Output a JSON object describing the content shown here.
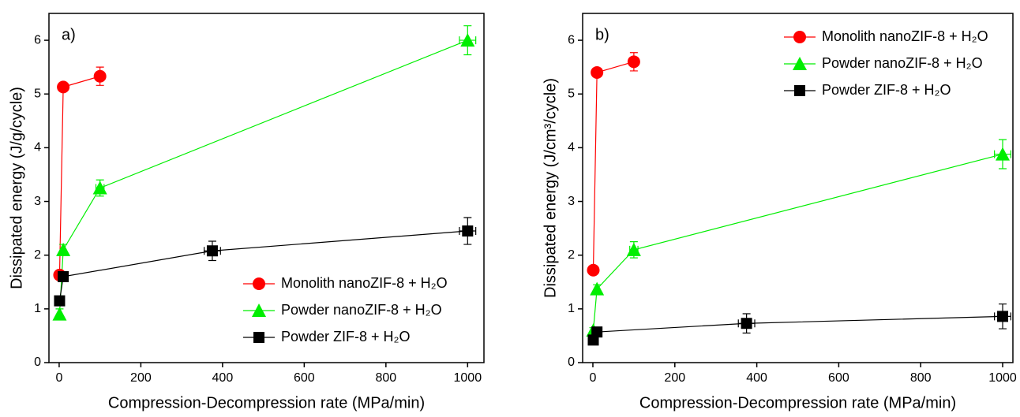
{
  "chart_data": [
    {
      "type": "line",
      "annotation": "a)",
      "xlabel": "Compression-Decompression rate (MPa/min)",
      "ylabel": "Dissipated energy (J/g/cycle)",
      "xlim": [
        -25,
        1040
      ],
      "ylim": [
        0,
        6.5
      ],
      "xticks": [
        0,
        200,
        400,
        600,
        800,
        1000
      ],
      "yticks": [
        0,
        1,
        2,
        3,
        4,
        5,
        6
      ],
      "legend": "lower right",
      "series": [
        {
          "name": "Monolith nanoZIF-8 + H₂O",
          "color": "#ff0000",
          "marker": "circle",
          "x": [
            1,
            10,
            100
          ],
          "values": [
            1.63,
            5.13,
            5.33
          ],
          "errors": [
            0.05,
            0.05,
            0.17
          ],
          "xerrors": [
            0,
            0,
            10
          ]
        },
        {
          "name": "Powder nanoZIF-8 + H₂O",
          "color": "#00ee00",
          "marker": "triangle",
          "x": [
            1,
            10,
            100,
            1000
          ],
          "values": [
            0.9,
            2.1,
            3.25,
            6.0
          ],
          "errors": [
            0.1,
            0.1,
            0.15,
            0.27
          ],
          "xerrors": [
            0,
            0,
            10,
            20
          ]
        },
        {
          "name": "Powder ZIF-8 + H₂O",
          "color": "#000000",
          "marker": "square",
          "x": [
            1,
            10,
            375,
            1000
          ],
          "values": [
            1.15,
            1.6,
            2.08,
            2.45
          ],
          "errors": [
            0.05,
            0.05,
            0.18,
            0.25
          ],
          "xerrors": [
            0,
            0,
            20,
            20
          ]
        }
      ]
    },
    {
      "type": "line",
      "annotation": "b)",
      "xlabel": "Compression-Decompression rate (MPa/min)",
      "ylabel": "Dissipated energy (J/cm³/cycle)",
      "xlim": [
        -25,
        1025
      ],
      "ylim": [
        0,
        6.5
      ],
      "xticks": [
        0,
        200,
        400,
        600,
        800,
        1000
      ],
      "yticks": [
        0,
        1,
        2,
        3,
        4,
        5,
        6
      ],
      "legend": "upper right",
      "series": [
        {
          "name": "Monolith nanoZIF-8 + H₂O",
          "color": "#ff0000",
          "marker": "circle",
          "x": [
            1,
            10,
            100
          ],
          "values": [
            1.72,
            5.4,
            5.6
          ],
          "errors": [
            0.05,
            0.05,
            0.17
          ],
          "xerrors": [
            0,
            0,
            10
          ]
        },
        {
          "name": "Powder nanoZIF-8 + H₂O",
          "color": "#00ee00",
          "marker": "triangle",
          "x": [
            1,
            10,
            100,
            1000
          ],
          "values": [
            0.6,
            1.37,
            2.1,
            3.88
          ],
          "errors": [
            0.05,
            0.08,
            0.15,
            0.27
          ],
          "xerrors": [
            0,
            0,
            10,
            20
          ]
        },
        {
          "name": "Powder ZIF-8 + H₂O",
          "color": "#000000",
          "marker": "square",
          "x": [
            1,
            10,
            375,
            1000
          ],
          "values": [
            0.42,
            0.57,
            0.73,
            0.86
          ],
          "errors": [
            0.05,
            0.05,
            0.18,
            0.23
          ],
          "xerrors": [
            0,
            0,
            20,
            20
          ]
        }
      ]
    }
  ]
}
